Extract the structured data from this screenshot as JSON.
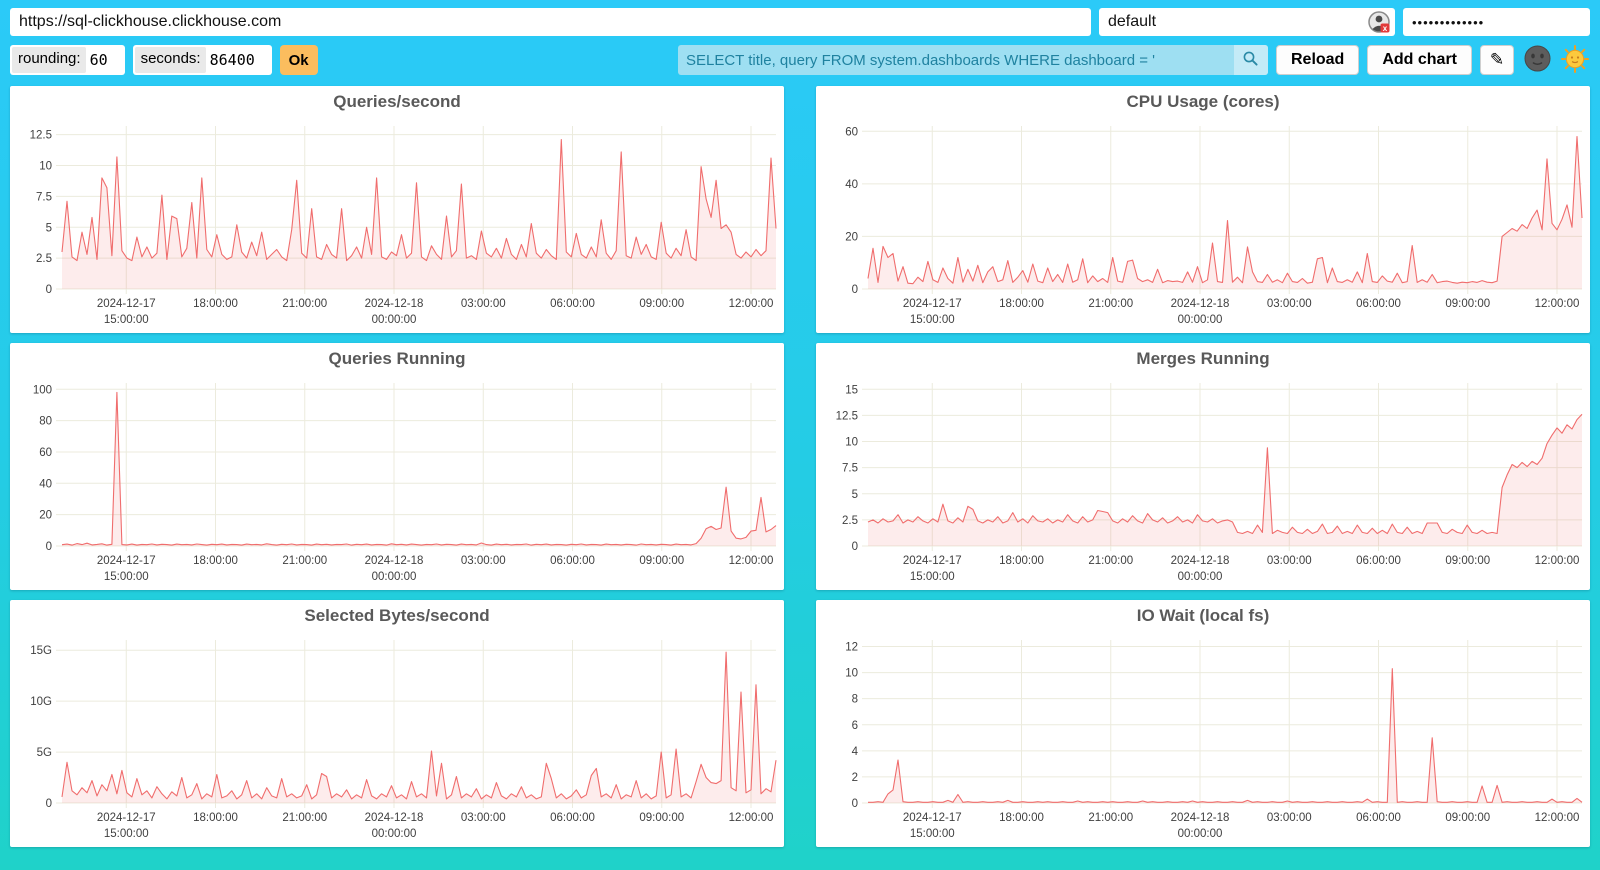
{
  "topbar": {
    "url_value": "https://sql-clickhouse.clickhouse.com",
    "user_value": "default",
    "password_value": "•••••••••••••"
  },
  "controls": {
    "rounding_label": "rounding:",
    "rounding_value": "60",
    "seconds_label": "seconds:",
    "seconds_value": "86400",
    "ok_label": "Ok",
    "query_value": "SELECT title, query FROM system.dashboards WHERE dashboard = '",
    "reload_label": "Reload",
    "add_chart_label": "Add chart",
    "edit_icon": "✎"
  },
  "colors": {
    "background_top": "#2bcaf8",
    "background_bottom": "#1fd2c9",
    "line": "#f06d6d",
    "fill": "rgba(240,109,109,0.13)",
    "grid": "#ecebdd",
    "title_text": "#595959",
    "axis_text": "#3f3f3f",
    "ok_button": "#fbbd5e",
    "search_bg": "#9edff2",
    "search_text": "#1f82a0"
  },
  "chart_data": {
    "type": "line",
    "x_ticks": [
      {
        "frac": 0.09,
        "lines": [
          "2024-12-17",
          "15:00:00"
        ]
      },
      {
        "frac": 0.215,
        "lines": [
          "18:00:00"
        ]
      },
      {
        "frac": 0.34,
        "lines": [
          "21:00:00"
        ]
      },
      {
        "frac": 0.465,
        "lines": [
          "2024-12-18",
          "00:00:00"
        ]
      },
      {
        "frac": 0.59,
        "lines": [
          "03:00:00"
        ]
      },
      {
        "frac": 0.715,
        "lines": [
          "06:00:00"
        ]
      },
      {
        "frac": 0.84,
        "lines": [
          "09:00:00"
        ]
      },
      {
        "frac": 0.965,
        "lines": [
          "12:00:00"
        ]
      }
    ],
    "charts": [
      {
        "title": "Queries/second",
        "ymax": 13.2,
        "y_ticks": [
          {
            "v": 0,
            "label": "0"
          },
          {
            "v": 2.5,
            "label": "2.5"
          },
          {
            "v": 5,
            "label": "5"
          },
          {
            "v": 7.5,
            "label": "7.5"
          },
          {
            "v": 10,
            "label": "10"
          },
          {
            "v": 12.5,
            "label": "12.5"
          }
        ],
        "values": [
          3.0,
          7.1,
          2.6,
          2.3,
          4.6,
          2.8,
          5.8,
          2.4,
          9.0,
          8.2,
          2.7,
          10.7,
          3.1,
          2.5,
          2.3,
          4.2,
          2.6,
          3.4,
          2.5,
          2.9,
          7.6,
          2.4,
          5.9,
          5.7,
          2.6,
          3.3,
          7.0,
          2.5,
          9.0,
          3.2,
          2.6,
          4.4,
          2.8,
          2.4,
          2.6,
          5.2,
          3.0,
          2.5,
          3.8,
          2.7,
          4.6,
          2.4,
          2.8,
          3.2,
          2.6,
          2.3,
          4.8,
          8.8,
          2.9,
          2.5,
          6.5,
          2.6,
          2.4,
          3.6,
          2.8,
          2.5,
          6.5,
          2.3,
          2.7,
          3.4,
          2.5,
          5.0,
          2.8,
          9.0,
          2.6,
          2.4,
          3.0,
          2.7,
          4.4,
          2.5,
          2.9,
          8.6,
          2.6,
          2.3,
          3.5,
          2.8,
          2.4,
          5.9,
          2.6,
          3.1,
          8.5,
          2.5,
          2.7,
          2.4,
          4.7,
          2.9,
          2.6,
          3.3,
          2.5,
          4.1,
          2.8,
          2.4,
          3.6,
          2.6,
          5.3,
          2.9,
          2.5,
          3.2,
          2.7,
          2.4,
          12.1,
          3.0,
          2.6,
          4.5,
          2.8,
          2.5,
          3.4,
          2.6,
          5.6,
          2.9,
          2.4,
          3.1,
          11.1,
          2.7,
          2.5,
          4.2,
          2.8,
          3.6,
          2.6,
          2.4,
          5.4,
          2.9,
          2.5,
          3.3,
          2.7,
          4.8,
          2.6,
          2.3,
          9.9,
          7.3,
          5.8,
          8.8,
          4.9,
          5.2,
          4.6,
          2.8,
          2.5,
          3.0,
          2.6,
          3.2,
          2.7,
          3.1,
          10.6,
          4.9
        ]
      },
      {
        "title": "CPU Usage (cores)",
        "ymax": 62,
        "y_ticks": [
          {
            "v": 0,
            "label": "0"
          },
          {
            "v": 20,
            "label": "20"
          },
          {
            "v": 40,
            "label": "40"
          },
          {
            "v": 60,
            "label": "60"
          }
        ],
        "values": [
          4.0,
          15.5,
          2.5,
          16.2,
          12.0,
          13.5,
          3.0,
          8.5,
          2.2,
          2.0,
          4.5,
          2.8,
          10.5,
          3.5,
          2.5,
          8.0,
          4.0,
          2.2,
          12.0,
          2.6,
          7.5,
          3.0,
          9.0,
          2.4,
          6.5,
          8.5,
          2.8,
          3.5,
          10.8,
          2.5,
          4.5,
          7.0,
          2.6,
          9.5,
          3.0,
          2.4,
          8.0,
          2.8,
          5.5,
          2.5,
          9.5,
          2.6,
          3.5,
          11.5,
          2.4,
          5.0,
          2.8,
          4.0,
          2.5,
          12.0,
          3.0,
          2.6,
          10.5,
          11.0,
          4.0,
          2.8,
          3.5,
          2.5,
          7.5,
          2.4,
          3.2,
          2.8,
          3.0,
          2.5,
          6.5,
          2.6,
          8.5,
          2.4,
          3.5,
          17.5,
          2.8,
          2.5,
          26.0,
          2.6,
          4.5,
          2.4,
          16.0,
          6.5,
          2.8,
          2.5,
          5.5,
          2.6,
          3.5,
          2.4,
          6.0,
          2.8,
          2.5,
          4.0,
          2.2,
          2.6,
          11.5,
          12.0,
          2.4,
          8.0,
          2.8,
          2.5,
          3.5,
          2.6,
          6.5,
          2.4,
          13.5,
          2.8,
          2.5,
          5.0,
          3.0,
          2.6,
          6.0,
          2.4,
          2.8,
          16.5,
          2.5,
          3.5,
          2.6,
          5.5,
          2.4,
          2.8,
          3.0,
          2.5,
          2.2,
          2.6,
          2.4,
          2.8,
          2.5,
          3.2,
          2.6,
          2.4,
          3.0,
          20.0,
          21.5,
          23.0,
          22.0,
          24.5,
          23.0,
          27.0,
          30.0,
          22.5,
          49.5,
          25.0,
          22.5,
          26.5,
          32.0,
          23.5,
          58.0,
          27.0
        ]
      },
      {
        "title": "Queries Running",
        "ymax": 104,
        "y_ticks": [
          {
            "v": 0,
            "label": "0"
          },
          {
            "v": 20,
            "label": "20"
          },
          {
            "v": 40,
            "label": "40"
          },
          {
            "v": 60,
            "label": "60"
          },
          {
            "v": 80,
            "label": "80"
          },
          {
            "v": 100,
            "label": "100"
          }
        ],
        "values": [
          0.8,
          1.2,
          0.6,
          1.5,
          0.9,
          1.8,
          0.7,
          1.0,
          1.4,
          0.6,
          1.1,
          98.0,
          0.9,
          0.7,
          1.2,
          0.6,
          1.0,
          0.8,
          1.3,
          0.7,
          1.1,
          0.9,
          0.6,
          1.2,
          0.8,
          1.0,
          0.7,
          1.3,
          0.9,
          0.6,
          1.1,
          0.8,
          1.2,
          0.7,
          1.0,
          0.9,
          0.6,
          1.2,
          0.8,
          1.0,
          0.7,
          1.4,
          0.9,
          0.6,
          1.1,
          0.8,
          1.3,
          0.7,
          1.0,
          0.9,
          0.6,
          1.2,
          0.8,
          1.1,
          0.7,
          1.0,
          0.9,
          1.3,
          0.6,
          1.1,
          0.8,
          1.2,
          0.7,
          1.0,
          0.9,
          0.6,
          1.4,
          0.8,
          1.1,
          0.7,
          1.2,
          0.9,
          0.6,
          1.0,
          0.8,
          1.3,
          0.7,
          1.1,
          0.9,
          0.6,
          1.2,
          0.8,
          1.0,
          0.7,
          1.9,
          0.9,
          0.6,
          1.2,
          0.8,
          1.1,
          0.7,
          1.0,
          0.9,
          1.3,
          0.6,
          1.1,
          0.8,
          1.2,
          0.7,
          1.0,
          0.9,
          0.6,
          1.1,
          0.8,
          1.3,
          0.7,
          1.0,
          0.9,
          0.6,
          1.2,
          0.8,
          1.0,
          0.7,
          1.1,
          0.9,
          0.6,
          1.3,
          0.8,
          1.0,
          0.7,
          1.1,
          0.9,
          0.6,
          1.2,
          0.8,
          1.0,
          0.7,
          1.5,
          5.0,
          11.0,
          12.5,
          10.5,
          11.5,
          37.5,
          9.5,
          5.0,
          4.5,
          5.5,
          9.5,
          10.0,
          31.0,
          9.0,
          10.5,
          13.0
        ]
      },
      {
        "title": "Merges Running",
        "ymax": 15.6,
        "y_ticks": [
          {
            "v": 0,
            "label": "0"
          },
          {
            "v": 2.5,
            "label": "2.5"
          },
          {
            "v": 5,
            "label": "5"
          },
          {
            "v": 7.5,
            "label": "7.5"
          },
          {
            "v": 10,
            "label": "10"
          },
          {
            "v": 12.5,
            "label": "12.5"
          },
          {
            "v": 15,
            "label": "15"
          }
        ],
        "values": [
          2.3,
          2.5,
          2.2,
          2.6,
          2.3,
          2.4,
          3.0,
          2.2,
          2.5,
          2.3,
          2.8,
          2.4,
          2.2,
          2.6,
          2.3,
          4.0,
          2.4,
          2.2,
          2.7,
          2.3,
          3.8,
          3.5,
          2.4,
          2.2,
          2.5,
          2.3,
          2.8,
          2.2,
          2.4,
          3.2,
          2.3,
          2.6,
          2.2,
          2.9,
          2.4,
          2.3,
          2.6,
          2.2,
          2.5,
          2.3,
          3.0,
          2.4,
          2.2,
          2.8,
          2.3,
          2.5,
          3.4,
          3.3,
          3.2,
          2.4,
          2.2,
          2.6,
          2.3,
          2.9,
          2.4,
          2.2,
          3.1,
          2.5,
          2.3,
          2.7,
          2.2,
          2.4,
          2.8,
          2.3,
          2.5,
          2.2,
          3.0,
          2.4,
          2.3,
          2.6,
          2.2,
          2.4,
          2.5,
          2.3,
          1.3,
          1.2,
          1.4,
          1.2,
          2.0,
          1.3,
          9.4,
          1.2,
          1.5,
          1.3,
          1.2,
          1.8,
          1.3,
          1.2,
          1.6,
          1.2,
          1.4,
          2.1,
          1.2,
          1.3,
          1.9,
          1.2,
          1.4,
          1.2,
          2.0,
          1.3,
          1.2,
          1.7,
          1.2,
          1.5,
          1.2,
          2.1,
          1.3,
          1.2,
          1.8,
          1.2,
          1.4,
          1.2,
          2.2,
          2.2,
          2.2,
          1.3,
          1.2,
          1.6,
          1.3,
          1.2,
          2.0,
          1.3,
          1.2,
          1.5,
          1.2,
          1.3,
          1.2,
          5.6,
          6.8,
          7.8,
          7.5,
          8.0,
          7.6,
          8.1,
          7.8,
          8.4,
          9.8,
          10.6,
          11.3,
          10.8,
          11.6,
          11.2,
          12.1,
          12.6
        ]
      },
      {
        "title": "Selected Bytes/second",
        "ymax": 16,
        "y_ticks": [
          {
            "v": 0,
            "label": "0"
          },
          {
            "v": 5,
            "label": "5G"
          },
          {
            "v": 10,
            "label": "10G"
          },
          {
            "v": 15,
            "label": "15G"
          }
        ],
        "values": [
          0.6,
          4.0,
          1.2,
          0.8,
          1.5,
          1.0,
          2.2,
          0.7,
          1.8,
          1.2,
          2.8,
          0.9,
          3.2,
          1.0,
          0.6,
          2.4,
          0.8,
          1.2,
          0.5,
          1.6,
          0.9,
          0.4,
          1.1,
          0.7,
          2.5,
          0.5,
          0.8,
          1.9,
          0.4,
          0.9,
          0.6,
          2.8,
          0.5,
          0.7,
          1.2,
          0.4,
          0.8,
          2.2,
          0.5,
          0.9,
          0.4,
          1.5,
          0.7,
          0.5,
          2.4,
          0.6,
          0.9,
          0.5,
          0.7,
          1.8,
          0.4,
          0.8,
          2.9,
          2.6,
          0.5,
          0.9,
          0.6,
          1.3,
          0.4,
          0.8,
          0.5,
          2.3,
          0.7,
          0.4,
          0.9,
          0.6,
          1.7,
          0.5,
          0.8,
          0.4,
          2.1,
          0.6,
          0.9,
          0.5,
          5.1,
          0.7,
          3.9,
          0.4,
          0.8,
          2.6,
          0.5,
          0.9,
          0.6,
          1.4,
          0.4,
          0.8,
          0.5,
          2.0,
          0.7,
          0.4,
          0.9,
          0.6,
          1.6,
          0.5,
          0.8,
          0.4,
          0.6,
          3.9,
          2.4,
          0.5,
          0.9,
          0.4,
          0.7,
          1.3,
          0.5,
          0.8,
          2.7,
          3.4,
          0.6,
          0.9,
          0.5,
          1.8,
          0.4,
          0.8,
          0.6,
          2.2,
          0.5,
          0.9,
          0.4,
          0.7,
          5.0,
          0.5,
          0.8,
          5.3,
          0.6,
          0.9,
          0.5,
          2.1,
          3.8,
          2.5,
          2.0,
          1.9,
          2.2,
          14.8,
          1.5,
          1.2,
          10.9,
          1.0,
          1.3,
          11.6,
          0.9,
          1.4,
          1.1,
          4.2
        ]
      },
      {
        "title": "IO Wait (local fs)",
        "ymax": 12.5,
        "y_ticks": [
          {
            "v": 0,
            "label": "0"
          },
          {
            "v": 2,
            "label": "2"
          },
          {
            "v": 4,
            "label": "4"
          },
          {
            "v": 6,
            "label": "6"
          },
          {
            "v": 8,
            "label": "8"
          },
          {
            "v": 10,
            "label": "10"
          },
          {
            "v": 12,
            "label": "12"
          }
        ],
        "values": [
          0.05,
          0.05,
          0.1,
          0.05,
          0.7,
          1.0,
          3.3,
          0.1,
          0.05,
          0.05,
          0.1,
          0.05,
          0.05,
          0.1,
          0.05,
          0.05,
          0.2,
          0.05,
          0.65,
          0.05,
          0.1,
          0.05,
          0.05,
          0.1,
          0.05,
          0.05,
          0.1,
          0.05,
          0.2,
          0.05,
          0.05,
          0.1,
          0.05,
          0.05,
          0.1,
          0.05,
          0.1,
          0.05,
          0.05,
          0.1,
          0.05,
          0.05,
          0.15,
          0.05,
          0.1,
          0.05,
          0.05,
          0.1,
          0.05,
          0.1,
          0.05,
          0.05,
          0.1,
          0.05,
          0.05,
          0.15,
          0.05,
          0.1,
          0.05,
          0.05,
          0.1,
          0.05,
          0.05,
          0.1,
          0.05,
          0.15,
          0.05,
          0.1,
          0.05,
          0.05,
          0.1,
          0.05,
          0.05,
          0.1,
          0.05,
          0.05,
          0.2,
          0.05,
          0.1,
          0.05,
          0.05,
          0.1,
          0.05,
          0.05,
          0.15,
          0.05,
          0.1,
          0.05,
          0.05,
          0.1,
          0.05,
          0.05,
          0.1,
          0.05,
          0.05,
          0.1,
          0.05,
          0.05,
          0.1,
          0.05,
          0.3,
          0.05,
          0.1,
          0.05,
          0.05,
          10.3,
          0.05,
          0.1,
          0.05,
          0.05,
          0.1,
          0.05,
          0.05,
          5.0,
          0.1,
          0.05,
          0.05,
          0.1,
          0.05,
          0.05,
          0.1,
          0.05,
          0.05,
          1.3,
          0.05,
          0.05,
          1.35,
          0.05,
          0.1,
          0.05,
          0.05,
          0.1,
          0.05,
          0.05,
          0.1,
          0.05,
          0.05,
          0.3,
          0.05,
          0.1,
          0.05,
          0.05,
          0.35,
          0.05
        ]
      }
    ]
  }
}
